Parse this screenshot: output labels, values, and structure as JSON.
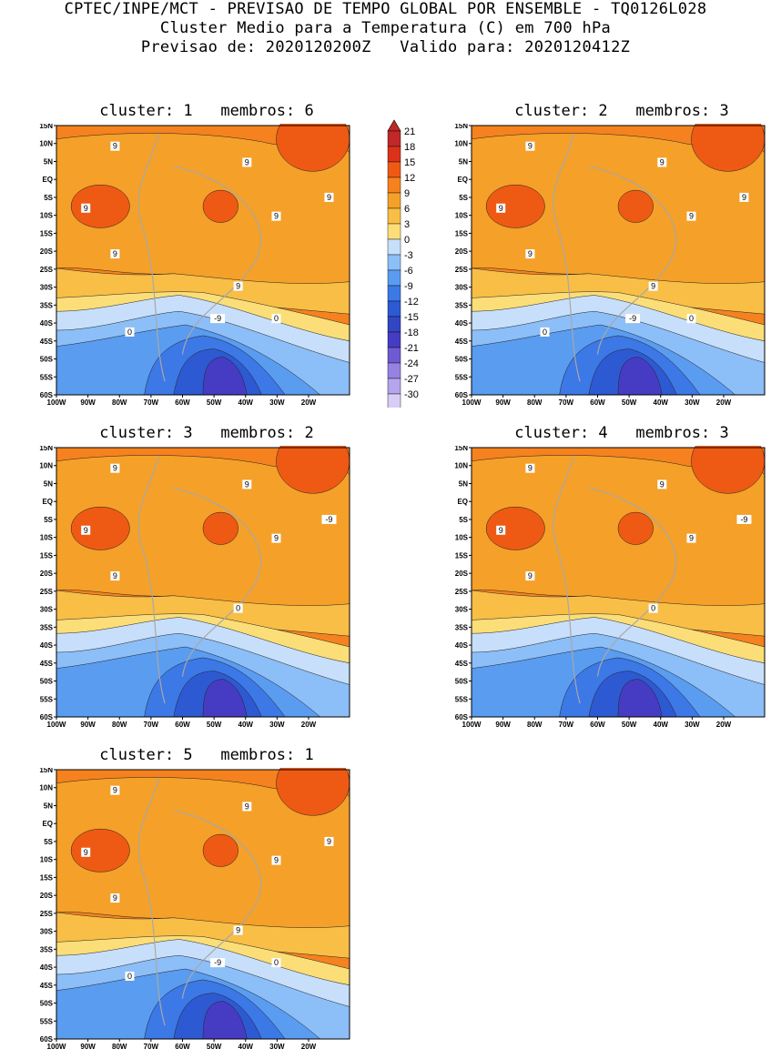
{
  "header": {
    "line1": "CPTEC/INPE/MCT - PREVISAO DE TEMPO GLOBAL POR ENSEMBLE - TQ0126L028",
    "line2": "Cluster Medio para a Temperatura (C) em 700 hPa",
    "line3": "Previsao de: 2020120200Z   Valido para: 2020120412Z"
  },
  "lat_labels": [
    "15N",
    "10N",
    "5N",
    "EQ",
    "5S",
    "10S",
    "15S",
    "20S",
    "25S",
    "30S",
    "35S",
    "40S",
    "45S",
    "50S",
    "55S",
    "60S"
  ],
  "lon_labels": [
    "100W",
    "90W",
    "80W",
    "70W",
    "60W",
    "50W",
    "40W",
    "30W",
    "20W"
  ],
  "colorbar": {
    "labels": [
      "21",
      "18",
      "15",
      "12",
      "9",
      "6",
      "3",
      "0",
      "-3",
      "-6",
      "-9",
      "-12",
      "-15",
      "-18",
      "-21",
      "-24",
      "-27",
      "-30"
    ],
    "colors": [
      "#c0282a",
      "#dc3219",
      "#ee5a14",
      "#f5821e",
      "#f5a028",
      "#f8be46",
      "#fbde78",
      "#c7dffa",
      "#8cbef8",
      "#5a9cf0",
      "#3c78e6",
      "#2d5ad2",
      "#3246c3",
      "#463cc3",
      "#6e5ad2",
      "#9682e1",
      "#b4a5ec",
      "#d7cdf6"
    ]
  },
  "panels": [
    {
      "title": "cluster: 1   membros: 6",
      "contour_labels": [
        "9",
        "9",
        "9",
        "9",
        "9",
        "9",
        "9",
        "0",
        "0",
        "-9"
      ]
    },
    {
      "title": "cluster: 2   membros: 3",
      "contour_labels": [
        "9",
        "9",
        "9",
        "9",
        "9",
        "9",
        "9",
        "0",
        "0",
        "-9"
      ]
    },
    {
      "title": "cluster: 3   membros: 2",
      "contour_labels": [
        "9",
        "9",
        "9",
        "9",
        "9",
        "0",
        "-9"
      ]
    },
    {
      "title": "cluster: 4   membros: 3",
      "contour_labels": [
        "9",
        "9",
        "9",
        "9",
        "9",
        "0",
        "-9"
      ]
    },
    {
      "title": "cluster: 5   membros: 1",
      "contour_labels": [
        "9",
        "9",
        "9",
        "9",
        "9",
        "9",
        "9",
        "0",
        "0",
        "-9"
      ]
    }
  ]
}
